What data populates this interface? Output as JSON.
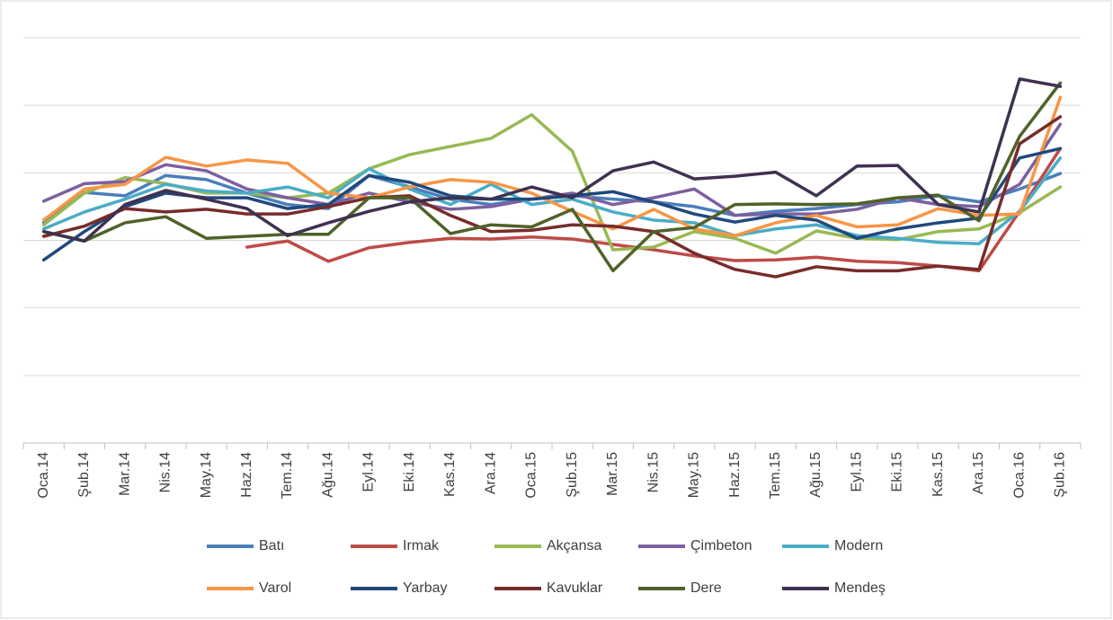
{
  "chart_data": {
    "type": "line",
    "categories": [
      "Oca.14",
      "Şub.14",
      "Mar.14",
      "Nis.14",
      "May.14",
      "Haz.14",
      "Tem.14",
      "Ağu.14",
      "Eyl.14",
      "Eki.14",
      "Kas.14",
      "Ara.14",
      "Oca.15",
      "Şub.15",
      "Mar.15",
      "Nis.15",
      "May.15",
      "Haz.15",
      "Tem.15",
      "Ağu.15",
      "Eyl.15",
      "Eki.15",
      "Kas.15",
      "Ara.15",
      "Oca.16",
      "Şub.16"
    ],
    "ylim": [
      0,
      6
    ],
    "yticks": [
      0,
      1,
      2,
      3,
      4,
      5,
      6
    ],
    "grid": true,
    "series": [
      {
        "name": "Batı",
        "color": "#4a7ebb",
        "values": [
          3.26,
          3.71,
          3.66,
          3.96,
          3.9,
          3.7,
          3.53,
          3.47,
          3.96,
          3.79,
          3.61,
          3.53,
          3.61,
          3.66,
          3.61,
          3.57,
          3.5,
          3.37,
          3.43,
          3.47,
          3.53,
          3.57,
          3.66,
          3.57,
          3.76,
          3.99
        ]
      },
      {
        "name": "Irmak",
        "color": "#be4b48",
        "values": [
          null,
          null,
          null,
          null,
          null,
          2.9,
          2.99,
          2.69,
          2.89,
          2.97,
          3.03,
          3.02,
          3.05,
          3.02,
          2.94,
          2.86,
          2.77,
          2.7,
          2.71,
          2.75,
          2.69,
          2.67,
          2.62,
          2.55,
          3.43,
          4.36
        ]
      },
      {
        "name": "Akçansa",
        "color": "#98b954",
        "values": [
          3.23,
          3.7,
          3.93,
          3.84,
          3.7,
          3.7,
          3.63,
          3.7,
          4.06,
          4.27,
          4.39,
          4.51,
          4.86,
          4.32,
          2.86,
          2.9,
          3.13,
          3.03,
          2.81,
          3.14,
          3.03,
          3.01,
          3.13,
          3.17,
          3.41,
          3.79
        ]
      },
      {
        "name": "Çimbeton",
        "color": "#7d60a0",
        "values": [
          3.58,
          3.84,
          3.87,
          4.12,
          4.03,
          3.76,
          3.63,
          3.53,
          3.7,
          3.57,
          3.46,
          3.5,
          3.61,
          3.7,
          3.53,
          3.63,
          3.76,
          3.37,
          3.39,
          3.39,
          3.46,
          3.63,
          3.53,
          3.5,
          3.83,
          4.72
        ]
      },
      {
        "name": "Modern",
        "color": "#4bacc6",
        "values": [
          3.17,
          3.42,
          3.61,
          3.83,
          3.73,
          3.7,
          3.79,
          3.63,
          4.06,
          3.76,
          3.53,
          3.83,
          3.53,
          3.61,
          3.42,
          3.3,
          3.26,
          3.07,
          3.17,
          3.23,
          3.07,
          3.03,
          2.97,
          2.95,
          3.43,
          4.22
        ]
      },
      {
        "name": "Varol",
        "color": "#f79646",
        "values": [
          3.3,
          3.76,
          3.83,
          4.23,
          4.1,
          4.19,
          4.14,
          3.7,
          3.63,
          3.79,
          3.9,
          3.86,
          3.7,
          3.43,
          3.17,
          3.46,
          3.17,
          3.07,
          3.26,
          3.37,
          3.2,
          3.23,
          3.47,
          3.37,
          3.39,
          5.12
        ]
      },
      {
        "name": "Yarbay",
        "color": "#1f497d",
        "values": [
          2.71,
          3.13,
          3.5,
          3.7,
          3.63,
          3.63,
          3.47,
          3.53,
          3.96,
          3.86,
          3.66,
          3.61,
          3.61,
          3.66,
          3.72,
          3.57,
          3.39,
          3.27,
          3.37,
          3.3,
          3.03,
          3.17,
          3.26,
          3.33,
          4.22,
          4.36
        ]
      },
      {
        "name": "Kavuklar",
        "color": "#772c2a",
        "values": [
          3.06,
          3.21,
          3.47,
          3.42,
          3.46,
          3.39,
          3.39,
          3.5,
          3.63,
          3.66,
          3.37,
          3.13,
          3.15,
          3.23,
          3.21,
          3.13,
          2.81,
          2.57,
          2.46,
          2.61,
          2.55,
          2.55,
          2.62,
          2.57,
          4.43,
          4.83
        ]
      },
      {
        "name": "Dere",
        "color": "#4f6228",
        "values": [
          3.13,
          2.99,
          3.26,
          3.35,
          3.03,
          3.06,
          3.09,
          3.09,
          3.63,
          3.63,
          3.1,
          3.23,
          3.2,
          3.46,
          2.55,
          3.13,
          3.19,
          3.53,
          3.54,
          3.53,
          3.54,
          3.63,
          3.67,
          3.29,
          4.54,
          5.33
        ]
      },
      {
        "name": "Mendeş",
        "color": "#3f3151",
        "values": [
          3.13,
          2.99,
          3.53,
          3.74,
          3.61,
          3.47,
          3.07,
          3.26,
          3.43,
          3.57,
          3.63,
          3.61,
          3.79,
          3.63,
          4.03,
          4.16,
          3.91,
          3.95,
          4.01,
          3.66,
          4.1,
          4.11,
          3.53,
          3.42,
          5.39,
          5.28
        ]
      }
    ]
  }
}
